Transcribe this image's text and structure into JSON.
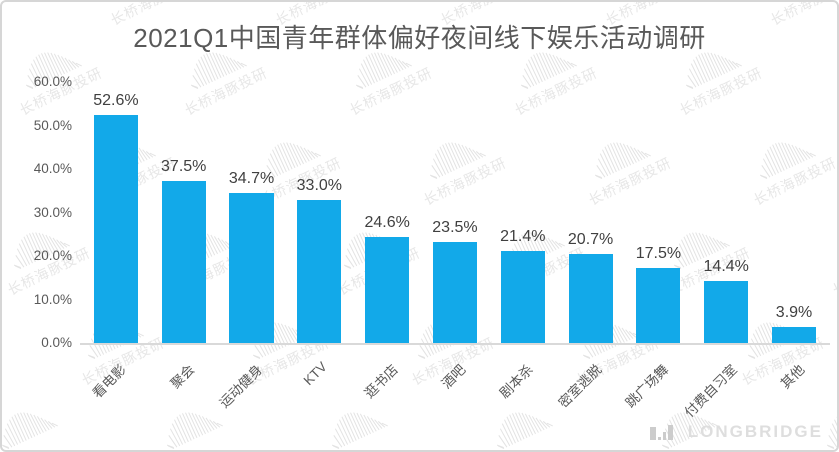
{
  "chart_data": {
    "type": "bar",
    "title": "2021Q1中国青年群体偏好夜间线下娱乐活动调研",
    "categories": [
      "看电影",
      "聚会",
      "运动健身",
      "KTV",
      "逛书店",
      "酒吧",
      "剧本杀",
      "密室逃脱",
      "跳广场舞",
      "付费自习室",
      "其他"
    ],
    "values": [
      52.6,
      37.5,
      34.7,
      33.0,
      24.6,
      23.5,
      21.4,
      20.7,
      17.5,
      14.4,
      3.9
    ],
    "value_labels": [
      "52.6%",
      "37.5%",
      "34.7%",
      "33.0%",
      "24.6%",
      "23.5%",
      "21.4%",
      "20.7%",
      "17.5%",
      "14.4%",
      "3.9%"
    ],
    "yticks": [
      "0.0%",
      "10.0%",
      "20.0%",
      "30.0%",
      "40.0%",
      "50.0%",
      "60.0%"
    ],
    "ylim": [
      0,
      60
    ],
    "xlabel": "",
    "ylabel": "",
    "grid": false,
    "legend": null,
    "bar_color": "#12a9e9",
    "title_color": "#595959",
    "value_label_color": "#404040",
    "axis_label_color": "#595959",
    "axis_line_color": "#d9d9d9"
  },
  "watermark": {
    "text": "长桥海豚投研",
    "icon": "dolphin-watermark-icon",
    "color": "#e7e7e7"
  },
  "logo": {
    "text": "LONGBRIDGE",
    "icon": "longbridge-bars-icon",
    "color": "#dedede"
  }
}
